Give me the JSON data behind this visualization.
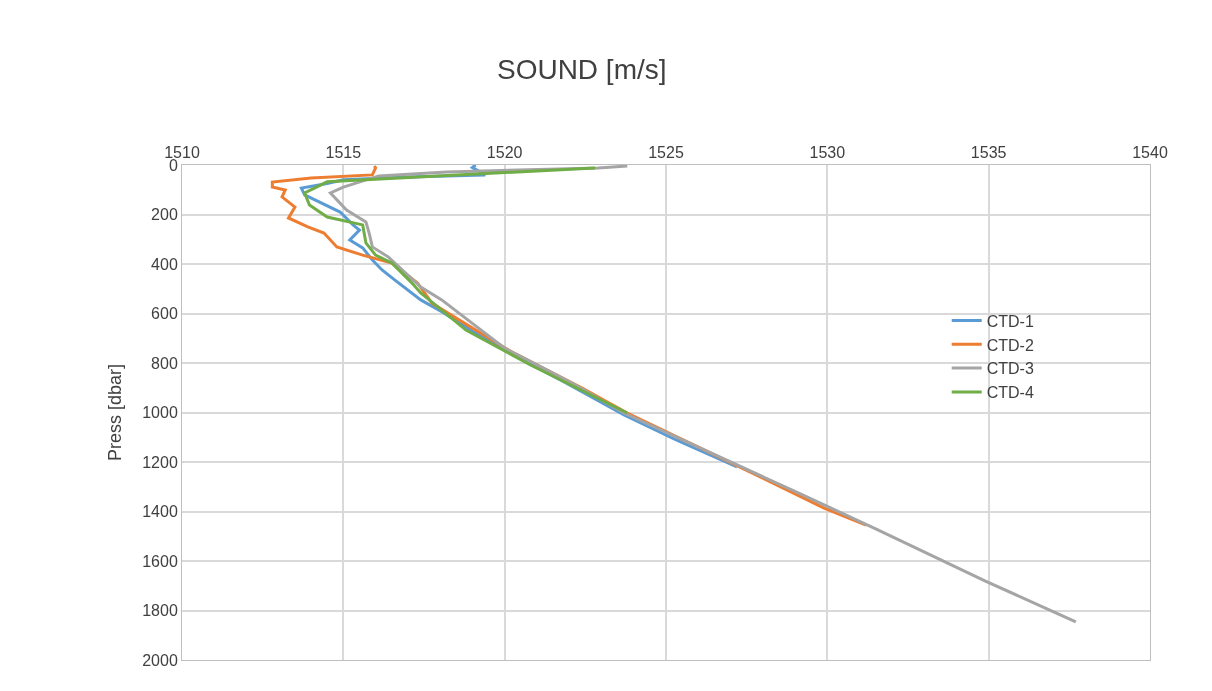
{
  "chart_data": {
    "type": "line",
    "title": "SOUND [m/s]",
    "ylabel": "Press [dbar]",
    "xlim": [
      1510,
      1540
    ],
    "xticks": [
      1510,
      1515,
      1520,
      1525,
      1530,
      1535,
      1540
    ],
    "ylim": [
      2000,
      0
    ],
    "yticks": [
      0,
      200,
      400,
      600,
      800,
      1000,
      1200,
      1400,
      1600,
      1800,
      2000
    ],
    "grid": true,
    "legend": "right",
    "marker": "none",
    "line_style": "solid",
    "series": [
      {
        "name": "CTD-1",
        "color": "#5b9bd5",
        "x": [
          1519.1,
          1519.0,
          1519.4,
          1517.0,
          1515.0,
          1514.5,
          1513.7,
          1513.8,
          1514.9,
          1515.3,
          1515.5,
          1515.2,
          1515.6,
          1515.9,
          1516.2,
          1516.6,
          1517.4,
          1518.05,
          1518.8,
          1520.0,
          1521.9,
          1523.7,
          1525.3,
          1527.2
        ],
        "values": [
          0,
          10,
          40,
          48,
          60,
          75,
          93,
          121,
          190,
          242,
          263,
          303,
          335,
          384,
          424,
          465,
          545,
          593,
          654,
          747,
          881,
          1010,
          1110,
          1220
        ]
      },
      {
        "name": "CTD-2",
        "color": "#ed7d31",
        "x": [
          1515.96,
          1516.0,
          1515.9,
          1514.0,
          1512.8,
          1512.8,
          1513.2,
          1513.1,
          1513.5,
          1513.3,
          1513.9,
          1514.4,
          1514.8,
          1515.6,
          1516.5,
          1517.3,
          1517.75,
          1520.2,
          1522.4,
          1523.8,
          1526.0,
          1528.0,
          1529.9,
          1531.2
        ],
        "values": [
          4,
          12,
          40,
          53,
          69,
          89,
          101,
          129,
          170,
          214,
          250,
          275,
          331,
          364,
          396,
          477,
          559,
          754,
          901,
          1002,
          1140,
          1265,
          1386,
          1455
        ]
      },
      {
        "name": "CTD-3",
        "color": "#a5a5a5",
        "x": [
          1523.8,
          1522.9,
          1518.2,
          1516.1,
          1515.0,
          1514.6,
          1515.1,
          1515.7,
          1515.8,
          1515.9,
          1516.4,
          1517.4,
          1518.05,
          1520.0,
          1522.0,
          1523.7,
          1526.0,
          1529.2,
          1531.5,
          1534.9,
          1537.7
        ],
        "values": [
          4,
          12,
          28,
          44,
          89,
          113,
          182,
          230,
          275,
          331,
          372,
          493,
          545,
          740,
          875,
          1002,
          1140,
          1331,
          1470,
          1681,
          1846
        ]
      },
      {
        "name": "CTD-4",
        "color": "#70ad47",
        "x": [
          1522.8,
          1514.5,
          1513.8,
          1513.95,
          1514.5,
          1515.6,
          1515.7,
          1516.0,
          1516.5,
          1517.1,
          1517.4,
          1518.8,
          1520.8,
          1523.8
        ],
        "values": [
          12,
          68,
          113,
          162,
          210,
          242,
          315,
          364,
          396,
          473,
          517,
          667,
          808,
          1002
        ]
      }
    ]
  }
}
